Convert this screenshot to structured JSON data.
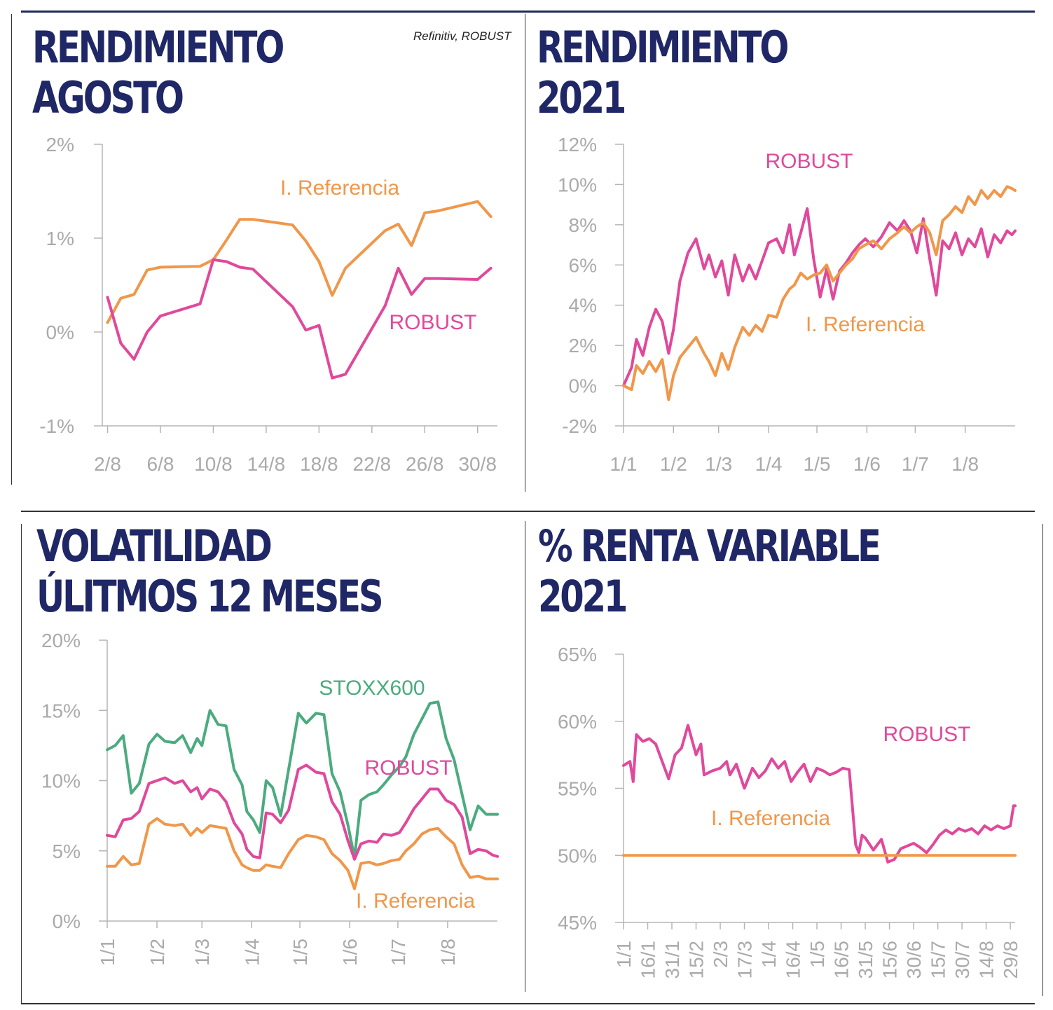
{
  "source": "Refinitiv, ROBUST",
  "colors": {
    "robust": "#e0499b",
    "referencia": "#f0974a",
    "stoxx": "#4bab7f",
    "title": "#1f2766",
    "tick": "#aaaaaa"
  },
  "chart_data": [
    {
      "id": "rend-agosto",
      "type": "line",
      "title": [
        "RENDIMIENTO",
        "AGOSTO"
      ],
      "yticks": [
        "2%",
        "1%",
        "0%",
        "-1%"
      ],
      "ytick_values": [
        2,
        1,
        0,
        -1
      ],
      "ylim": [
        -1,
        2
      ],
      "xticks": [
        "2/8",
        "6/8",
        "10/8",
        "14/8",
        "18/8",
        "22/8",
        "26/8",
        "30/8"
      ],
      "xtick_values": [
        2,
        6,
        10,
        14,
        18,
        22,
        26,
        30
      ],
      "xlim": [
        1.6,
        31.5
      ],
      "series": [
        {
          "name": "I. Referencia",
          "color_key": "referencia",
          "x": [
            2,
            3,
            4,
            5,
            6,
            9,
            10,
            11,
            12,
            13,
            16,
            17,
            18,
            19,
            20,
            23,
            24,
            25,
            26,
            27,
            30,
            31
          ],
          "y": [
            0.1,
            0.36,
            0.4,
            0.66,
            0.69,
            0.7,
            0.77,
            0.98,
            1.2,
            1.2,
            1.14,
            0.97,
            0.75,
            0.39,
            0.68,
            1.08,
            1.15,
            0.92,
            1.27,
            1.29,
            1.39,
            1.23
          ]
        },
        {
          "name": "ROBUST",
          "color_key": "robust",
          "x": [
            2,
            3,
            4,
            5,
            6,
            9,
            10,
            11,
            12,
            13,
            16,
            17,
            18,
            19,
            20,
            23,
            24,
            25,
            26,
            27,
            30,
            31
          ],
          "y": [
            0.37,
            -0.12,
            -0.29,
            0.0,
            0.17,
            0.3,
            0.77,
            0.75,
            0.69,
            0.67,
            0.27,
            0.02,
            0.07,
            -0.49,
            -0.45,
            0.28,
            0.68,
            0.4,
            0.57,
            0.57,
            0.56,
            0.68
          ]
        }
      ],
      "labels": [
        {
          "text": "I. Referencia",
          "color_key": "referencia"
        },
        {
          "text": "ROBUST",
          "color_key": "robust"
        }
      ]
    },
    {
      "id": "rend-2021",
      "type": "line",
      "title": [
        "RENDIMIENTO",
        "2021"
      ],
      "yticks": [
        "12%",
        "10%",
        "8%",
        "6%",
        "4%",
        "2%",
        "0%",
        "-2%"
      ],
      "ytick_values": [
        12,
        10,
        8,
        6,
        4,
        2,
        0,
        -2
      ],
      "ylim": [
        -2,
        12
      ],
      "xticks": [
        "1/1",
        "1/2",
        "1/3",
        "1/4",
        "1/5",
        "1/6",
        "1/7",
        "1/8"
      ],
      "xtick_values": [
        0,
        31,
        59,
        90,
        120,
        151,
        181,
        212
      ],
      "xlim": [
        0,
        243
      ],
      "series": [
        {
          "name": "ROBUST",
          "color_key": "robust",
          "x": [
            0,
            5,
            8,
            12,
            16,
            20,
            24,
            28,
            31,
            35,
            40,
            45,
            50,
            53,
            57,
            61,
            65,
            69,
            74,
            78,
            82,
            86,
            90,
            95,
            99,
            103,
            106,
            110,
            114,
            118,
            122,
            126,
            130,
            134,
            138,
            142,
            146,
            150,
            155,
            160,
            165,
            170,
            174,
            178,
            182,
            186,
            190,
            194,
            198,
            202,
            206,
            210,
            214,
            218,
            222,
            226,
            230,
            234,
            238,
            241,
            243
          ],
          "y": [
            0,
            0.9,
            2.3,
            1.5,
            2.9,
            3.8,
            3.2,
            1.6,
            2.8,
            5.2,
            6.6,
            7.3,
            5.8,
            6.5,
            5.4,
            6.2,
            4.5,
            6.5,
            5.2,
            6.0,
            5.3,
            6.2,
            7.1,
            7.3,
            6.6,
            8.0,
            6.5,
            7.6,
            8.8,
            6.3,
            4.4,
            5.8,
            4.3,
            5.7,
            6.1,
            6.6,
            7.0,
            7.3,
            6.9,
            7.4,
            8.1,
            7.7,
            8.2,
            7.7,
            6.6,
            8.3,
            6.3,
            4.5,
            7.2,
            6.8,
            7.6,
            6.5,
            7.3,
            6.9,
            7.8,
            6.4,
            7.5,
            7.1,
            7.7,
            7.5,
            7.7
          ]
        },
        {
          "name": "I. Referencia",
          "color_key": "referencia",
          "x": [
            0,
            5,
            8,
            12,
            16,
            20,
            24,
            28,
            31,
            35,
            40,
            45,
            50,
            53,
            57,
            61,
            65,
            69,
            74,
            78,
            82,
            86,
            90,
            95,
            99,
            103,
            106,
            110,
            114,
            118,
            122,
            126,
            130,
            134,
            138,
            142,
            146,
            150,
            155,
            160,
            165,
            170,
            174,
            178,
            182,
            186,
            190,
            194,
            198,
            202,
            206,
            210,
            214,
            218,
            222,
            226,
            230,
            234,
            238,
            241,
            243
          ],
          "y": [
            0,
            -0.2,
            1.0,
            0.6,
            1.2,
            0.7,
            1.3,
            -0.7,
            0.5,
            1.4,
            1.9,
            2.4,
            1.6,
            1.2,
            0.5,
            1.6,
            0.8,
            1.9,
            2.9,
            2.5,
            3.0,
            2.7,
            3.5,
            3.4,
            4.3,
            4.8,
            5.0,
            5.6,
            5.3,
            5.5,
            5.6,
            6.0,
            5.2,
            5.6,
            6.0,
            6.3,
            6.8,
            7.0,
            7.2,
            6.8,
            7.3,
            7.6,
            7.9,
            7.6,
            7.9,
            8.1,
            7.6,
            6.5,
            8.2,
            8.5,
            8.9,
            8.6,
            9.4,
            9.0,
            9.7,
            9.3,
            9.7,
            9.4,
            9.9,
            9.8,
            9.7
          ]
        }
      ],
      "labels": [
        {
          "text": "ROBUST",
          "color_key": "robust"
        },
        {
          "text": "I. Referencia",
          "color_key": "referencia"
        }
      ]
    },
    {
      "id": "volatilidad",
      "type": "line",
      "title": [
        "VOLATILIDAD",
        "ÚLITMOS 12 MESES"
      ],
      "yticks": [
        "20%",
        "15%",
        "10%",
        "5%",
        "0%"
      ],
      "ytick_values": [
        20,
        15,
        10,
        5,
        0
      ],
      "ylim": [
        0,
        20
      ],
      "xticks": [
        "1/1",
        "1/2",
        "1/3",
        "1/4",
        "1/5",
        "1/6",
        "1/7",
        "1/8"
      ],
      "xtick_values": [
        0,
        31,
        59,
        90,
        120,
        151,
        181,
        212
      ],
      "xlim": [
        0,
        243
      ],
      "series": [
        {
          "name": "STOXX600",
          "color_key": "stoxx",
          "x": [
            0,
            5,
            10,
            15,
            20,
            26,
            31,
            36,
            42,
            47,
            52,
            56,
            59,
            64,
            69,
            74,
            79,
            84,
            87,
            91,
            95,
            99,
            103,
            108,
            113,
            119,
            124,
            130,
            135,
            140,
            145,
            150,
            154,
            158,
            163,
            168,
            172,
            177,
            182,
            186,
            191,
            196,
            201,
            206,
            211,
            216,
            221,
            226,
            231,
            236,
            240,
            243
          ],
          "y": [
            12.2,
            12.5,
            13.2,
            9.1,
            9.8,
            12.6,
            13.3,
            12.8,
            12.7,
            13.2,
            12.0,
            13.0,
            12.5,
            15.0,
            14.0,
            13.9,
            10.8,
            9.7,
            7.8,
            7.2,
            6.3,
            10.0,
            9.5,
            7.5,
            10.8,
            14.8,
            14.1,
            14.8,
            14.7,
            10.5,
            9.2,
            6.8,
            4.5,
            8.6,
            9.0,
            9.2,
            9.7,
            10.4,
            11.0,
            11.7,
            13.3,
            14.4,
            15.5,
            15.6,
            13.0,
            11.5,
            9.0,
            6.5,
            8.2,
            7.6,
            7.6,
            7.6
          ]
        },
        {
          "name": "ROBUST",
          "color_key": "robust",
          "x": [
            0,
            5,
            10,
            15,
            20,
            26,
            31,
            36,
            42,
            47,
            52,
            56,
            59,
            64,
            69,
            74,
            79,
            84,
            87,
            91,
            95,
            99,
            103,
            108,
            113,
            119,
            124,
            130,
            135,
            140,
            145,
            150,
            154,
            158,
            163,
            168,
            172,
            177,
            182,
            186,
            191,
            196,
            201,
            206,
            211,
            216,
            221,
            226,
            231,
            236,
            240,
            243
          ],
          "y": [
            6.1,
            6.0,
            7.2,
            7.3,
            7.8,
            9.8,
            10.0,
            10.2,
            9.8,
            10.0,
            9.2,
            9.5,
            8.7,
            9.4,
            9.2,
            8.5,
            7.0,
            6.2,
            5.1,
            4.6,
            4.5,
            7.7,
            7.6,
            7.0,
            7.9,
            10.8,
            11.1,
            10.6,
            10.5,
            8.5,
            7.6,
            5.7,
            4.4,
            5.5,
            5.7,
            5.6,
            6.2,
            6.1,
            6.3,
            7.0,
            8.0,
            8.7,
            9.4,
            9.4,
            8.6,
            8.3,
            7.4,
            4.8,
            5.1,
            5.0,
            4.7,
            4.6
          ]
        },
        {
          "name": "I. Referencia",
          "color_key": "referencia",
          "x": [
            0,
            5,
            10,
            15,
            20,
            26,
            31,
            36,
            42,
            47,
            52,
            56,
            59,
            64,
            69,
            74,
            79,
            84,
            87,
            91,
            95,
            99,
            103,
            108,
            113,
            119,
            124,
            130,
            135,
            140,
            145,
            150,
            154,
            158,
            163,
            168,
            172,
            177,
            182,
            186,
            191,
            196,
            201,
            206,
            211,
            216,
            221,
            226,
            231,
            236,
            240,
            243
          ],
          "y": [
            3.9,
            3.9,
            4.6,
            4.0,
            4.1,
            6.9,
            7.3,
            6.9,
            6.8,
            6.9,
            6.1,
            6.6,
            6.3,
            6.8,
            6.7,
            6.6,
            5.0,
            4.0,
            3.8,
            3.6,
            3.6,
            4.0,
            3.9,
            3.8,
            4.8,
            5.8,
            6.1,
            6.0,
            5.8,
            4.8,
            4.3,
            3.6,
            2.3,
            4.1,
            4.2,
            4.0,
            4.1,
            4.3,
            4.4,
            5.0,
            5.5,
            6.2,
            6.5,
            6.6,
            6.0,
            5.5,
            4.0,
            3.1,
            3.2,
            3.0,
            3.0,
            3.0
          ]
        }
      ],
      "labels": [
        {
          "text": "STOXX600",
          "color_key": "stoxx"
        },
        {
          "text": "ROBUST",
          "color_key": "robust"
        },
        {
          "text": "I. Referencia",
          "color_key": "referencia"
        }
      ]
    },
    {
      "id": "renta-variable",
      "type": "line",
      "title": [
        "% RENTA VARIABLE",
        "2021"
      ],
      "yticks": [
        "65%",
        "60%",
        "55%",
        "50%",
        "45%"
      ],
      "ytick_values": [
        65,
        60,
        55,
        50,
        45
      ],
      "ylim": [
        45,
        65
      ],
      "xticks": [
        "1/1",
        "16/1",
        "31/1",
        "15/2",
        "2/3",
        "17/3",
        "1/4",
        "16/4",
        "1/5",
        "16/5",
        "31/5",
        "15/6",
        "30/6",
        "15/7",
        "30/7",
        "14/8",
        "29/8"
      ],
      "xtick_values": [
        0,
        15,
        30,
        45,
        60,
        75,
        90,
        105,
        120,
        135,
        150,
        165,
        180,
        195,
        210,
        225,
        240
      ],
      "xlim": [
        0,
        243
      ],
      "series": [
        {
          "name": "ROBUST",
          "color_key": "robust",
          "x": [
            0,
            4,
            6,
            8,
            12,
            16,
            20,
            24,
            28,
            32,
            36,
            40,
            45,
            48,
            50,
            55,
            60,
            64,
            66,
            70,
            75,
            80,
            84,
            88,
            92,
            96,
            100,
            104,
            108,
            112,
            116,
            120,
            124,
            128,
            132,
            136,
            140,
            144,
            146,
            148,
            150,
            155,
            160,
            164,
            168,
            172,
            176,
            180,
            184,
            188,
            192,
            196,
            200,
            204,
            208,
            212,
            216,
            220,
            224,
            228,
            232,
            236,
            240,
            242,
            243
          ],
          "y": [
            56.7,
            57.0,
            55.5,
            59.0,
            58.5,
            58.7,
            58.3,
            57.0,
            55.7,
            57.5,
            58.0,
            59.7,
            57.5,
            58.3,
            56.0,
            56.3,
            56.5,
            57.0,
            56.0,
            56.8,
            55.0,
            56.5,
            55.8,
            56.3,
            57.2,
            56.5,
            57.0,
            55.5,
            56.2,
            56.8,
            55.5,
            56.5,
            56.3,
            56.0,
            56.2,
            56.5,
            56.4,
            50.8,
            50.2,
            51.5,
            51.3,
            50.4,
            51.2,
            49.5,
            49.7,
            50.5,
            50.7,
            50.9,
            50.6,
            50.2,
            50.8,
            51.5,
            51.9,
            51.6,
            52.0,
            51.8,
            52.0,
            51.6,
            52.2,
            51.9,
            52.2,
            52.0,
            52.2,
            53.7,
            53.7
          ]
        },
        {
          "name": "I. Referencia",
          "color_key": "referencia",
          "x": [
            0,
            243
          ],
          "y": [
            50,
            50
          ]
        }
      ],
      "labels": [
        {
          "text": "ROBUST",
          "color_key": "robust"
        },
        {
          "text": "I.  Referencia",
          "color_key": "referencia"
        }
      ]
    }
  ]
}
